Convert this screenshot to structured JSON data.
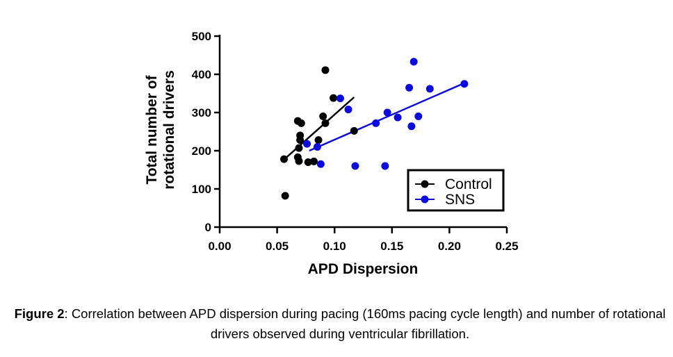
{
  "chart_data": {
    "type": "scatter",
    "xlabel": "APD Dispersion",
    "ylabel": [
      "Total number of",
      "rotational drivers"
    ],
    "xlim": [
      0,
      0.25
    ],
    "ylim": [
      0,
      500
    ],
    "xticks": [
      "0.00",
      "0.05",
      "0.10",
      "0.15",
      "0.20",
      "0.25"
    ],
    "yticks": [
      "0",
      "100",
      "200",
      "300",
      "400",
      "500"
    ],
    "grid": false,
    "legend_position": "bottom-right",
    "series": [
      {
        "name": "Control",
        "color": "#000000",
        "points": [
          [
            0.056,
            178
          ],
          [
            0.057,
            82
          ],
          [
            0.068,
            278
          ],
          [
            0.068,
            183
          ],
          [
            0.069,
            207
          ],
          [
            0.069,
            173
          ],
          [
            0.07,
            240
          ],
          [
            0.07,
            228
          ],
          [
            0.071,
            272
          ],
          [
            0.077,
            170
          ],
          [
            0.082,
            172
          ],
          [
            0.086,
            228
          ],
          [
            0.09,
            290
          ],
          [
            0.092,
            272
          ],
          [
            0.092,
            411
          ],
          [
            0.099,
            338
          ],
          [
            0.117,
            252
          ]
        ],
        "fit": [
          [
            0.056,
            177
          ],
          [
            0.117,
            340
          ]
        ]
      },
      {
        "name": "SNS",
        "color": "#0a0adc",
        "points": [
          [
            0.076,
            218
          ],
          [
            0.085,
            210
          ],
          [
            0.088,
            165
          ],
          [
            0.105,
            337
          ],
          [
            0.112,
            308
          ],
          [
            0.118,
            160
          ],
          [
            0.136,
            272
          ],
          [
            0.144,
            160
          ],
          [
            0.146,
            300
          ],
          [
            0.155,
            287
          ],
          [
            0.165,
            365
          ],
          [
            0.167,
            264
          ],
          [
            0.169,
            433
          ],
          [
            0.173,
            290
          ],
          [
            0.183,
            362
          ],
          [
            0.213,
            375
          ]
        ],
        "fit": [
          [
            0.078,
            200
          ],
          [
            0.213,
            377
          ]
        ]
      }
    ]
  },
  "caption": {
    "label": "Figure 2",
    "text": ": Correlation between APD dispersion during pacing (160ms pacing cycle length) and number of rotational drivers observed during ventricular fibrillation."
  }
}
